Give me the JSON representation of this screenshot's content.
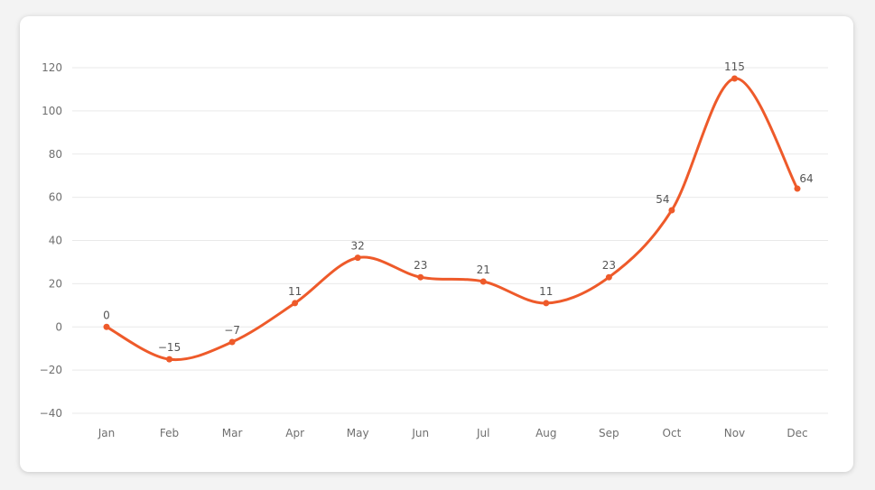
{
  "colors": {
    "line": "#ee5a2a",
    "grid": "#e9e9e9",
    "tick_text": "#6f6f6f",
    "label_text": "#555555"
  },
  "chart_data": {
    "type": "line",
    "smooth": true,
    "grid": true,
    "legend": "none",
    "categories": [
      "Jan",
      "Feb",
      "Mar",
      "Apr",
      "May",
      "Jun",
      "Jul",
      "Aug",
      "Sep",
      "Oct",
      "Nov",
      "Dec"
    ],
    "series": [
      {
        "values": [
          0,
          -15,
          -7,
          11,
          32,
          23,
          21,
          11,
          23,
          54,
          115,
          64
        ]
      }
    ],
    "ylim": [
      -40,
      120
    ],
    "yticks": [
      -40,
      -20,
      0,
      20,
      40,
      60,
      80,
      100,
      120
    ],
    "ytick_labels": [
      "−40",
      "−20",
      "0",
      "20",
      "40",
      "60",
      "80",
      "100",
      "120"
    ],
    "data_labels": [
      "0",
      "−15",
      "−7",
      "11",
      "32",
      "23",
      "21",
      "11",
      "23",
      "54",
      "115",
      "64"
    ]
  }
}
